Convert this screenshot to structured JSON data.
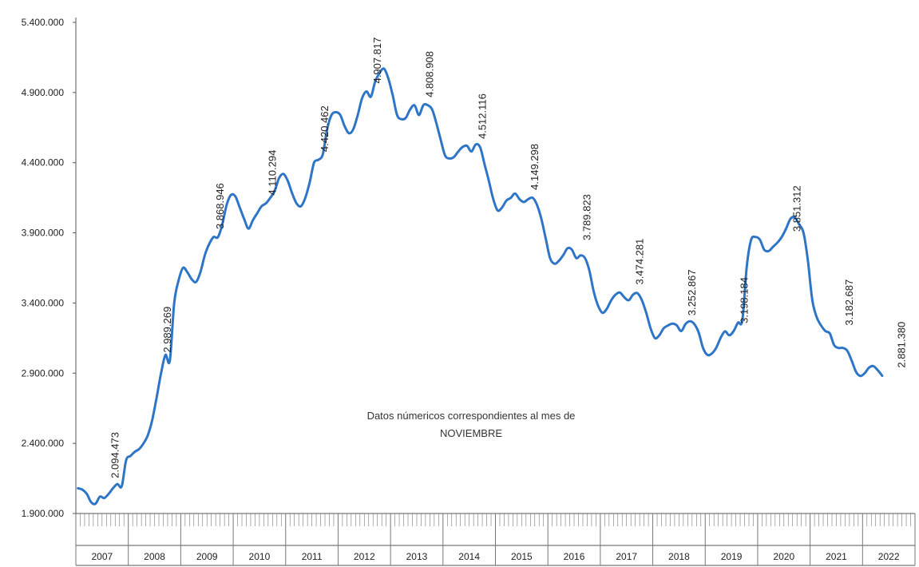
{
  "chart_data": {
    "type": "line",
    "title": "",
    "xlabel": "",
    "ylabel": "",
    "ylim": [
      1900000,
      5400000
    ],
    "y_ticks": [
      "1.900.000",
      "2.400.000",
      "2.900.000",
      "3.400.000",
      "3.900.000",
      "4.400.000",
      "4.900.000",
      "5.400.000"
    ],
    "y_tick_values": [
      1900000,
      2400000,
      2900000,
      3400000,
      3900000,
      4400000,
      4900000,
      5400000
    ],
    "grid": false,
    "line_color": "#2e75c7",
    "years": [
      "2007",
      "2008",
      "2009",
      "2010",
      "2011",
      "2012",
      "2013",
      "2014",
      "2015",
      "2016",
      "2017",
      "2018",
      "2019",
      "2020",
      "2021",
      "2022"
    ],
    "months_per_year": 12,
    "month_axis_note": "Monthly ticks per year (E, F, M, A, M, J, J, A, S, O, N, D), illegible in original",
    "annotation": {
      "line1": "Datos númericos correspondientes al mes de",
      "line2": "NOVIEMBRE"
    },
    "data_labels": [
      {
        "year": "2007",
        "text": "2.094.473",
        "value": 2094473
      },
      {
        "year": "2008",
        "text": "2.989.269",
        "value": 2989269
      },
      {
        "year": "2009",
        "text": "3.868.946",
        "value": 3868946
      },
      {
        "year": "2010",
        "text": "4.110.294",
        "value": 4110294
      },
      {
        "year": "2011",
        "text": "4.420.462",
        "value": 4420462
      },
      {
        "year": "2012",
        "text": "4.907.817",
        "value": 4907817
      },
      {
        "year": "2013",
        "text": "4.808.908",
        "value": 4808908
      },
      {
        "year": "2014",
        "text": "4.512.116",
        "value": 4512116
      },
      {
        "year": "2015",
        "text": "4.149.298",
        "value": 4149298
      },
      {
        "year": "2016",
        "text": "3.789.823",
        "value": 3789823
      },
      {
        "year": "2017",
        "text": "3.474.281",
        "value": 3474281
      },
      {
        "year": "2018",
        "text": "3.252.867",
        "value": 3252867
      },
      {
        "year": "2019",
        "text": "3.198.184",
        "value": 3198184
      },
      {
        "year": "2020",
        "text": "3.851.312",
        "value": 3851312
      },
      {
        "year": "2021",
        "text": "3.182.687",
        "value": 3182687
      },
      {
        "year": "2022",
        "text": "2.881.380",
        "value": 2881380
      }
    ],
    "series": [
      {
        "values": [
          2080000,
          2070000,
          2040000,
          1980000,
          1970000,
          2020000,
          2010000,
          2040000,
          2080000,
          2110000,
          2094473,
          2280000,
          2310000,
          2340000,
          2360000,
          2400000,
          2460000,
          2570000,
          2730000,
          2900000,
          3030000,
          2989269,
          3400000,
          3560000,
          3650000,
          3620000,
          3570000,
          3550000,
          3620000,
          3740000,
          3820000,
          3870000,
          3868946,
          3960000,
          4100000,
          4170000,
          4160000,
          4080000,
          4000000,
          3930000,
          3990000,
          4040000,
          4090000,
          4110294,
          4150000,
          4200000,
          4290000,
          4320000,
          4270000,
          4180000,
          4110000,
          4090000,
          4150000,
          4260000,
          4400000,
          4420462,
          4460000,
          4640000,
          4740000,
          4760000,
          4740000,
          4660000,
          4610000,
          4640000,
          4740000,
          4860000,
          4907817,
          4870000,
          4980000,
          5040000,
          5070000,
          5000000,
          4880000,
          4740000,
          4710000,
          4720000,
          4780000,
          4808908,
          4740000,
          4810000,
          4810000,
          4780000,
          4680000,
          4560000,
          4450000,
          4430000,
          4440000,
          4480000,
          4512116,
          4520000,
          4480000,
          4530000,
          4510000,
          4390000,
          4270000,
          4140000,
          4060000,
          4080000,
          4130000,
          4149298,
          4180000,
          4140000,
          4120000,
          4140000,
          4150000,
          4100000,
          4000000,
          3860000,
          3720000,
          3680000,
          3700000,
          3740000,
          3789823,
          3780000,
          3720000,
          3740000,
          3720000,
          3630000,
          3480000,
          3380000,
          3330000,
          3360000,
          3420000,
          3460000,
          3474281,
          3440000,
          3420000,
          3460000,
          3470000,
          3420000,
          3330000,
          3220000,
          3150000,
          3170000,
          3220000,
          3240000,
          3252867,
          3240000,
          3200000,
          3250000,
          3270000,
          3250000,
          3190000,
          3080000,
          3030000,
          3040000,
          3080000,
          3150000,
          3198184,
          3170000,
          3200000,
          3260000,
          3280000,
          3660000,
          3850000,
          3870000,
          3851312,
          3780000,
          3770000,
          3800000,
          3830000,
          3870000,
          3930000,
          4000000,
          4010000,
          3960000,
          3900000,
          3700000,
          3420000,
          3300000,
          3240000,
          3200000,
          3182687,
          3100000,
          3080000,
          3080000,
          3060000,
          2990000,
          2910000,
          2880000,
          2900000,
          2940000,
          2950000,
          2920000,
          2881380
        ]
      }
    ]
  }
}
